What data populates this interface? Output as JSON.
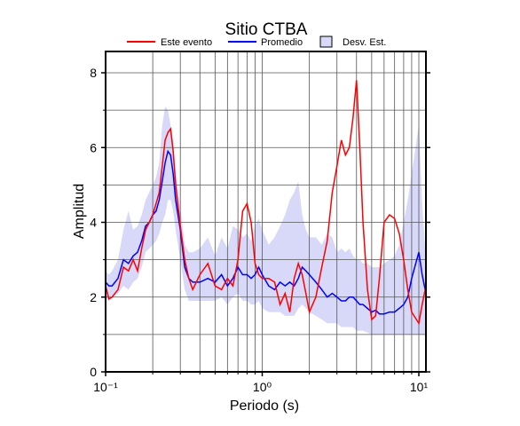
{
  "chart_data": {
    "type": "line",
    "title": "Sitio CTBA",
    "x_label": "Periodo (s)",
    "y_label": "Amplitud",
    "log_x": true,
    "grid": true,
    "xlim": [
      0.1,
      11.1
    ],
    "ylim": [
      0,
      8.57
    ],
    "xticks": [
      {
        "value": 0.1,
        "label": "10⁻¹"
      },
      {
        "value": 1,
        "label": "10⁰"
      },
      {
        "value": 10,
        "label": "10¹"
      }
    ],
    "x_minor_ticks": [
      0.2,
      0.3,
      0.4,
      0.5,
      0.6,
      0.7,
      0.8,
      0.9,
      2,
      3,
      4,
      5,
      6,
      7,
      8,
      9
    ],
    "yticks": [
      0,
      2,
      4,
      6,
      8
    ],
    "y_minor_ticks": [
      1,
      3,
      5,
      7
    ],
    "x": [
      0.1,
      0.105,
      0.11,
      0.12,
      0.13,
      0.14,
      0.15,
      0.16,
      0.17,
      0.18,
      0.19,
      0.2,
      0.21,
      0.22,
      0.23,
      0.24,
      0.25,
      0.26,
      0.27,
      0.28,
      0.3,
      0.32,
      0.34,
      0.36,
      0.4,
      0.45,
      0.5,
      0.55,
      0.6,
      0.65,
      0.7,
      0.75,
      0.8,
      0.85,
      0.9,
      0.95,
      1.0,
      1.1,
      1.2,
      1.3,
      1.4,
      1.5,
      1.6,
      1.7,
      1.8,
      1.9,
      2.0,
      2.2,
      2.4,
      2.6,
      2.8,
      3.0,
      3.2,
      3.4,
      3.6,
      3.8,
      4.0,
      4.2,
      4.4,
      4.7,
      5.0,
      5.3,
      5.6,
      6.0,
      6.5,
      7.0,
      7.5,
      8.0,
      8.5,
      9.0,
      10.0,
      10.5,
      11.1
    ],
    "band": {
      "name": "Desv. Est.",
      "color": "#d8d8f8",
      "upper": [
        2.7,
        2.6,
        2.7,
        3.0,
        3.8,
        4.3,
        3.8,
        3.9,
        4.2,
        4.6,
        4.8,
        5.0,
        5.2,
        5.6,
        6.6,
        7.1,
        7.0,
        6.6,
        6.2,
        5.4,
        4.4,
        3.4,
        3.2,
        3.2,
        3.3,
        3.6,
        3.1,
        3.6,
        3.3,
        3.9,
        3.8,
        3.6,
        3.7,
        3.5,
        3.9,
        4.1,
        3.8,
        3.4,
        3.6,
        3.9,
        4.2,
        4.6,
        4.8,
        5.1,
        4.2,
        3.8,
        3.6,
        3.6,
        3.4,
        3.7,
        3.6,
        3.2,
        3.3,
        3.2,
        3.3,
        3.1,
        3.0,
        3.0,
        2.9,
        2.9,
        2.8,
        2.8,
        2.8,
        2.9,
        3.0,
        3.1,
        3.4,
        4.0,
        4.6,
        5.3,
        6.6,
        4.5,
        3.0
      ],
      "lower": [
        2.0,
        1.9,
        2.0,
        2.1,
        2.3,
        2.2,
        2.4,
        2.5,
        2.8,
        3.2,
        3.3,
        3.4,
        3.5,
        3.7,
        4.0,
        4.2,
        4.6,
        4.6,
        4.3,
        3.8,
        3.0,
        2.2,
        1.9,
        1.9,
        1.9,
        1.9,
        1.9,
        2.0,
        1.8,
        2.0,
        2.1,
        1.9,
        1.9,
        1.8,
        1.8,
        1.9,
        1.7,
        1.6,
        1.6,
        1.6,
        1.5,
        1.5,
        1.5,
        1.7,
        1.8,
        1.7,
        1.6,
        1.5,
        1.4,
        1.3,
        1.3,
        1.3,
        1.2,
        1.2,
        1.2,
        1.2,
        1.1,
        1.1,
        1.1,
        1.05,
        1.0,
        1.0,
        1.0,
        1.0,
        1.0,
        1.0,
        1.0,
        1.0,
        1.0,
        1.0,
        1.0,
        1.0,
        1.0
      ]
    },
    "series": [
      {
        "name": "Este evento",
        "color": "#ff0000",
        "values": [
          2.3,
          1.95,
          2.0,
          2.2,
          2.8,
          2.7,
          3.0,
          2.7,
          3.3,
          3.8,
          4.0,
          4.2,
          4.5,
          4.8,
          5.5,
          6.2,
          6.4,
          6.5,
          5.9,
          5.0,
          3.9,
          3.0,
          2.5,
          2.2,
          2.6,
          2.9,
          2.3,
          2.2,
          2.5,
          2.3,
          3.0,
          4.3,
          4.5,
          4.0,
          2.9,
          2.6,
          2.5,
          2.5,
          2.4,
          1.8,
          2.1,
          1.6,
          2.5,
          2.9,
          2.6,
          2.1,
          1.6,
          2.0,
          2.8,
          3.5,
          4.8,
          5.5,
          6.2,
          5.8,
          6.0,
          6.8,
          7.8,
          6.0,
          4.0,
          2.2,
          1.4,
          1.5,
          2.5,
          4.0,
          4.2,
          4.1,
          3.7,
          3.0,
          2.2,
          1.6,
          1.3,
          1.8,
          2.3
        ]
      },
      {
        "name": "Promedio",
        "color": "#0000ff",
        "values": [
          2.4,
          2.3,
          2.3,
          2.5,
          3.0,
          2.9,
          3.1,
          3.2,
          3.5,
          3.9,
          4.0,
          4.2,
          4.3,
          4.6,
          5.1,
          5.6,
          5.9,
          5.8,
          5.3,
          4.6,
          3.8,
          2.8,
          2.5,
          2.4,
          2.4,
          2.5,
          2.4,
          2.6,
          2.3,
          2.5,
          2.8,
          2.6,
          2.6,
          2.5,
          2.6,
          2.8,
          2.6,
          2.3,
          2.2,
          2.4,
          2.3,
          2.4,
          2.3,
          2.5,
          2.8,
          2.7,
          2.6,
          2.4,
          2.2,
          2.0,
          2.1,
          2.0,
          1.9,
          1.9,
          2.0,
          2.0,
          1.9,
          1.8,
          1.8,
          1.7,
          1.6,
          1.65,
          1.55,
          1.55,
          1.6,
          1.6,
          1.7,
          1.8,
          2.0,
          2.5,
          3.2,
          2.6,
          2.1
        ]
      }
    ]
  }
}
